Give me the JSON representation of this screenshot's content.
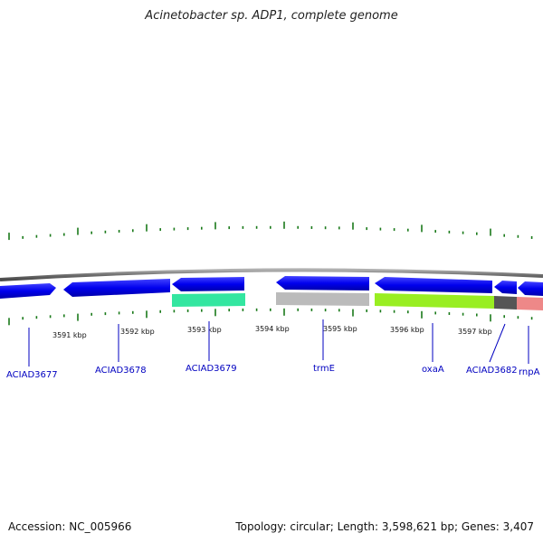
{
  "title": "Acinetobacter sp. ADP1, complete genome",
  "footer": {
    "accession": "Accession: NC_005966",
    "summary": "Topology: circular; Length: 3,598,621 bp; Genes: 3,407"
  },
  "scale_labels": [
    "3591 kbp",
    "3592 kbp",
    "3593 kbp",
    "3594 kbp",
    "3595 kbp",
    "3596 kbp",
    "3597 kbp"
  ],
  "genes": [
    {
      "name": "ACIAD3677",
      "color": "#0000ee"
    },
    {
      "name": "ACIAD3678",
      "color": "#0000ee"
    },
    {
      "name": "ACIAD3679",
      "color": "#0000ee"
    },
    {
      "name": "trmE",
      "color": "#0000ee"
    },
    {
      "name": "oxaA",
      "color": "#0000ee"
    },
    {
      "name": "ACIAD3682",
      "color": "#0000ee"
    },
    {
      "name": "rnpA",
      "color": "#0000ee"
    }
  ],
  "colors": {
    "backbone": "#808080",
    "ticks": "#1a7a1a",
    "cog_teal": "#33e6a0",
    "cog_gray": "#bbbbbb",
    "cog_lime": "#99ee22",
    "cog_darkgray": "#555555",
    "cog_pink": "#ee8888",
    "label_blue": "#0000c0"
  }
}
